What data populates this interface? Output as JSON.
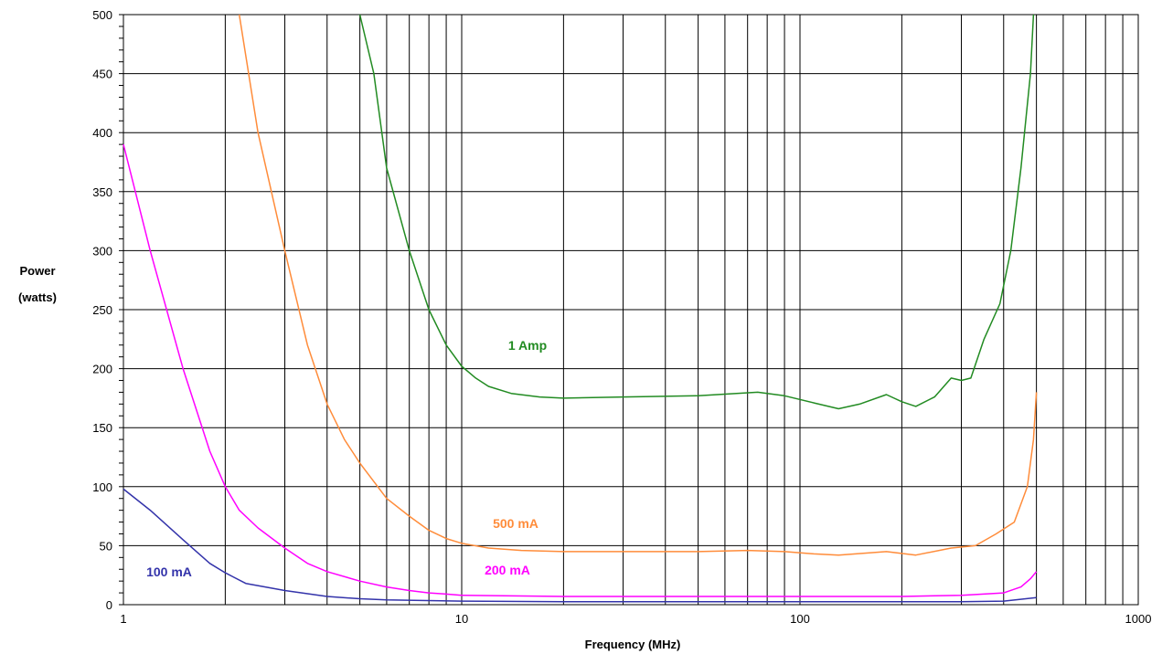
{
  "chart_data": {
    "type": "line",
    "xlabel": "Frequency (MHz)",
    "ylabel": [
      "Power",
      "(watts)"
    ],
    "x_scale": "log",
    "xlim": [
      1,
      1000
    ],
    "ylim": [
      0,
      500
    ],
    "x_ticks": [
      1,
      10,
      100,
      1000
    ],
    "y_ticks": [
      0,
      50,
      100,
      150,
      200,
      250,
      300,
      350,
      400,
      450,
      500
    ],
    "grid": true,
    "legend": "inline-labels",
    "series": [
      {
        "name": "1 Amp",
        "color": "#228B22",
        "label_at": [
          20,
          383
        ],
        "points": [
          [
            5,
            500
          ],
          [
            5.5,
            450
          ],
          [
            6,
            370
          ],
          [
            7,
            300
          ],
          [
            8,
            250
          ],
          [
            9,
            220
          ],
          [
            10,
            202
          ],
          [
            11,
            192
          ],
          [
            12,
            185
          ],
          [
            14,
            179
          ],
          [
            17,
            176
          ],
          [
            20,
            175
          ],
          [
            30,
            176
          ],
          [
            50,
            177
          ],
          [
            75,
            180
          ],
          [
            90,
            177
          ],
          [
            110,
            171
          ],
          [
            130,
            166
          ],
          [
            150,
            170
          ],
          [
            180,
            178
          ],
          [
            200,
            172
          ],
          [
            220,
            168
          ],
          [
            250,
            176
          ],
          [
            280,
            192
          ],
          [
            300,
            190
          ],
          [
            320,
            192
          ],
          [
            350,
            225
          ],
          [
            390,
            255
          ],
          [
            420,
            300
          ],
          [
            450,
            370
          ],
          [
            480,
            450
          ],
          [
            490,
            500
          ]
        ]
      },
      {
        "name": "500 mA",
        "color": "#FF8C3A",
        "label_at": [
          150,
          578
        ],
        "points": [
          [
            2.2,
            500
          ],
          [
            2.5,
            400
          ],
          [
            3,
            300
          ],
          [
            3.5,
            220
          ],
          [
            4,
            170
          ],
          [
            4.5,
            140
          ],
          [
            5,
            120
          ],
          [
            6,
            90
          ],
          [
            7,
            75
          ],
          [
            8,
            63
          ],
          [
            9,
            56
          ],
          [
            10,
            52
          ],
          [
            12,
            48
          ],
          [
            15,
            46
          ],
          [
            20,
            45
          ],
          [
            50,
            45
          ],
          [
            70,
            46
          ],
          [
            90,
            45
          ],
          [
            110,
            43
          ],
          [
            130,
            42
          ],
          [
            180,
            45
          ],
          [
            220,
            42
          ],
          [
            280,
            48
          ],
          [
            330,
            50
          ],
          [
            380,
            60
          ],
          [
            430,
            70
          ],
          [
            470,
            100
          ],
          [
            490,
            140
          ],
          [
            500,
            180
          ]
        ]
      },
      {
        "name": "200 mA",
        "color": "#FF00FF",
        "label_at": [
          510,
          629
        ],
        "points": [
          [
            1,
            390
          ],
          [
            1.2,
            300
          ],
          [
            1.5,
            200
          ],
          [
            1.8,
            130
          ],
          [
            2,
            100
          ],
          [
            2.2,
            80
          ],
          [
            2.5,
            65
          ],
          [
            3,
            48
          ],
          [
            3.5,
            35
          ],
          [
            4,
            28
          ],
          [
            5,
            20
          ],
          [
            6,
            15
          ],
          [
            7,
            12
          ],
          [
            8,
            10
          ],
          [
            9,
            9
          ],
          [
            10,
            8
          ],
          [
            20,
            7
          ],
          [
            50,
            7
          ],
          [
            100,
            7
          ],
          [
            200,
            7
          ],
          [
            300,
            8
          ],
          [
            400,
            10
          ],
          [
            450,
            15
          ],
          [
            480,
            22
          ],
          [
            500,
            28
          ]
        ]
      },
      {
        "name": "100 mA",
        "color": "#3333AA",
        "label_at": [
          152,
          631
        ],
        "points": [
          [
            1,
            98
          ],
          [
            1.2,
            80
          ],
          [
            1.5,
            55
          ],
          [
            1.8,
            35
          ],
          [
            2,
            27
          ],
          [
            2.3,
            18
          ],
          [
            3,
            12
          ],
          [
            4,
            7
          ],
          [
            5,
            5
          ],
          [
            6,
            4
          ],
          [
            10,
            3
          ],
          [
            20,
            2.5
          ],
          [
            100,
            2.5
          ],
          [
            300,
            2.5
          ],
          [
            400,
            3
          ],
          [
            500,
            6
          ]
        ]
      }
    ]
  }
}
